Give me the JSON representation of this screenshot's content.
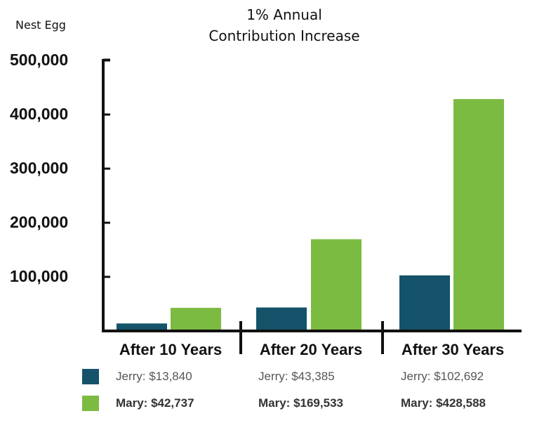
{
  "title": "1% Annual Contribution Increase",
  "title_lines": [
    "1% Annual",
    "Contribution Increase"
  ],
  "ylabel": "Nest Egg",
  "colors": {
    "jerry": "#14536a",
    "mary": "#7cbb42",
    "axis": "#111111"
  },
  "legend": {
    "rows": [
      {
        "series": "Jerry",
        "labels": [
          "Jerry: $13,840",
          "Jerry: $43,385",
          "Jerry: $102,692"
        ]
      },
      {
        "series": "Mary",
        "labels": [
          "Mary: $42,737",
          "Mary: $169,533",
          "Mary: $428,588"
        ]
      }
    ]
  },
  "chart_data": {
    "type": "bar",
    "title": "1% Annual Contribution Increase",
    "ylabel": "Nest Egg",
    "xlabel": "",
    "categories": [
      "After 10 Years",
      "After 20 Years",
      "After 30 Years"
    ],
    "series": [
      {
        "name": "Jerry",
        "values": [
          13840,
          43385,
          102692
        ]
      },
      {
        "name": "Mary",
        "values": [
          42737,
          169533,
          428588
        ]
      }
    ],
    "yticks": [
      "100,000",
      "200,000",
      "300,000",
      "400,000",
      "500,000"
    ],
    "ytick_values": [
      100000,
      200000,
      300000,
      400000,
      500000
    ],
    "ylim": [
      0,
      500000
    ],
    "grid": false,
    "legend_position": "bottom"
  }
}
